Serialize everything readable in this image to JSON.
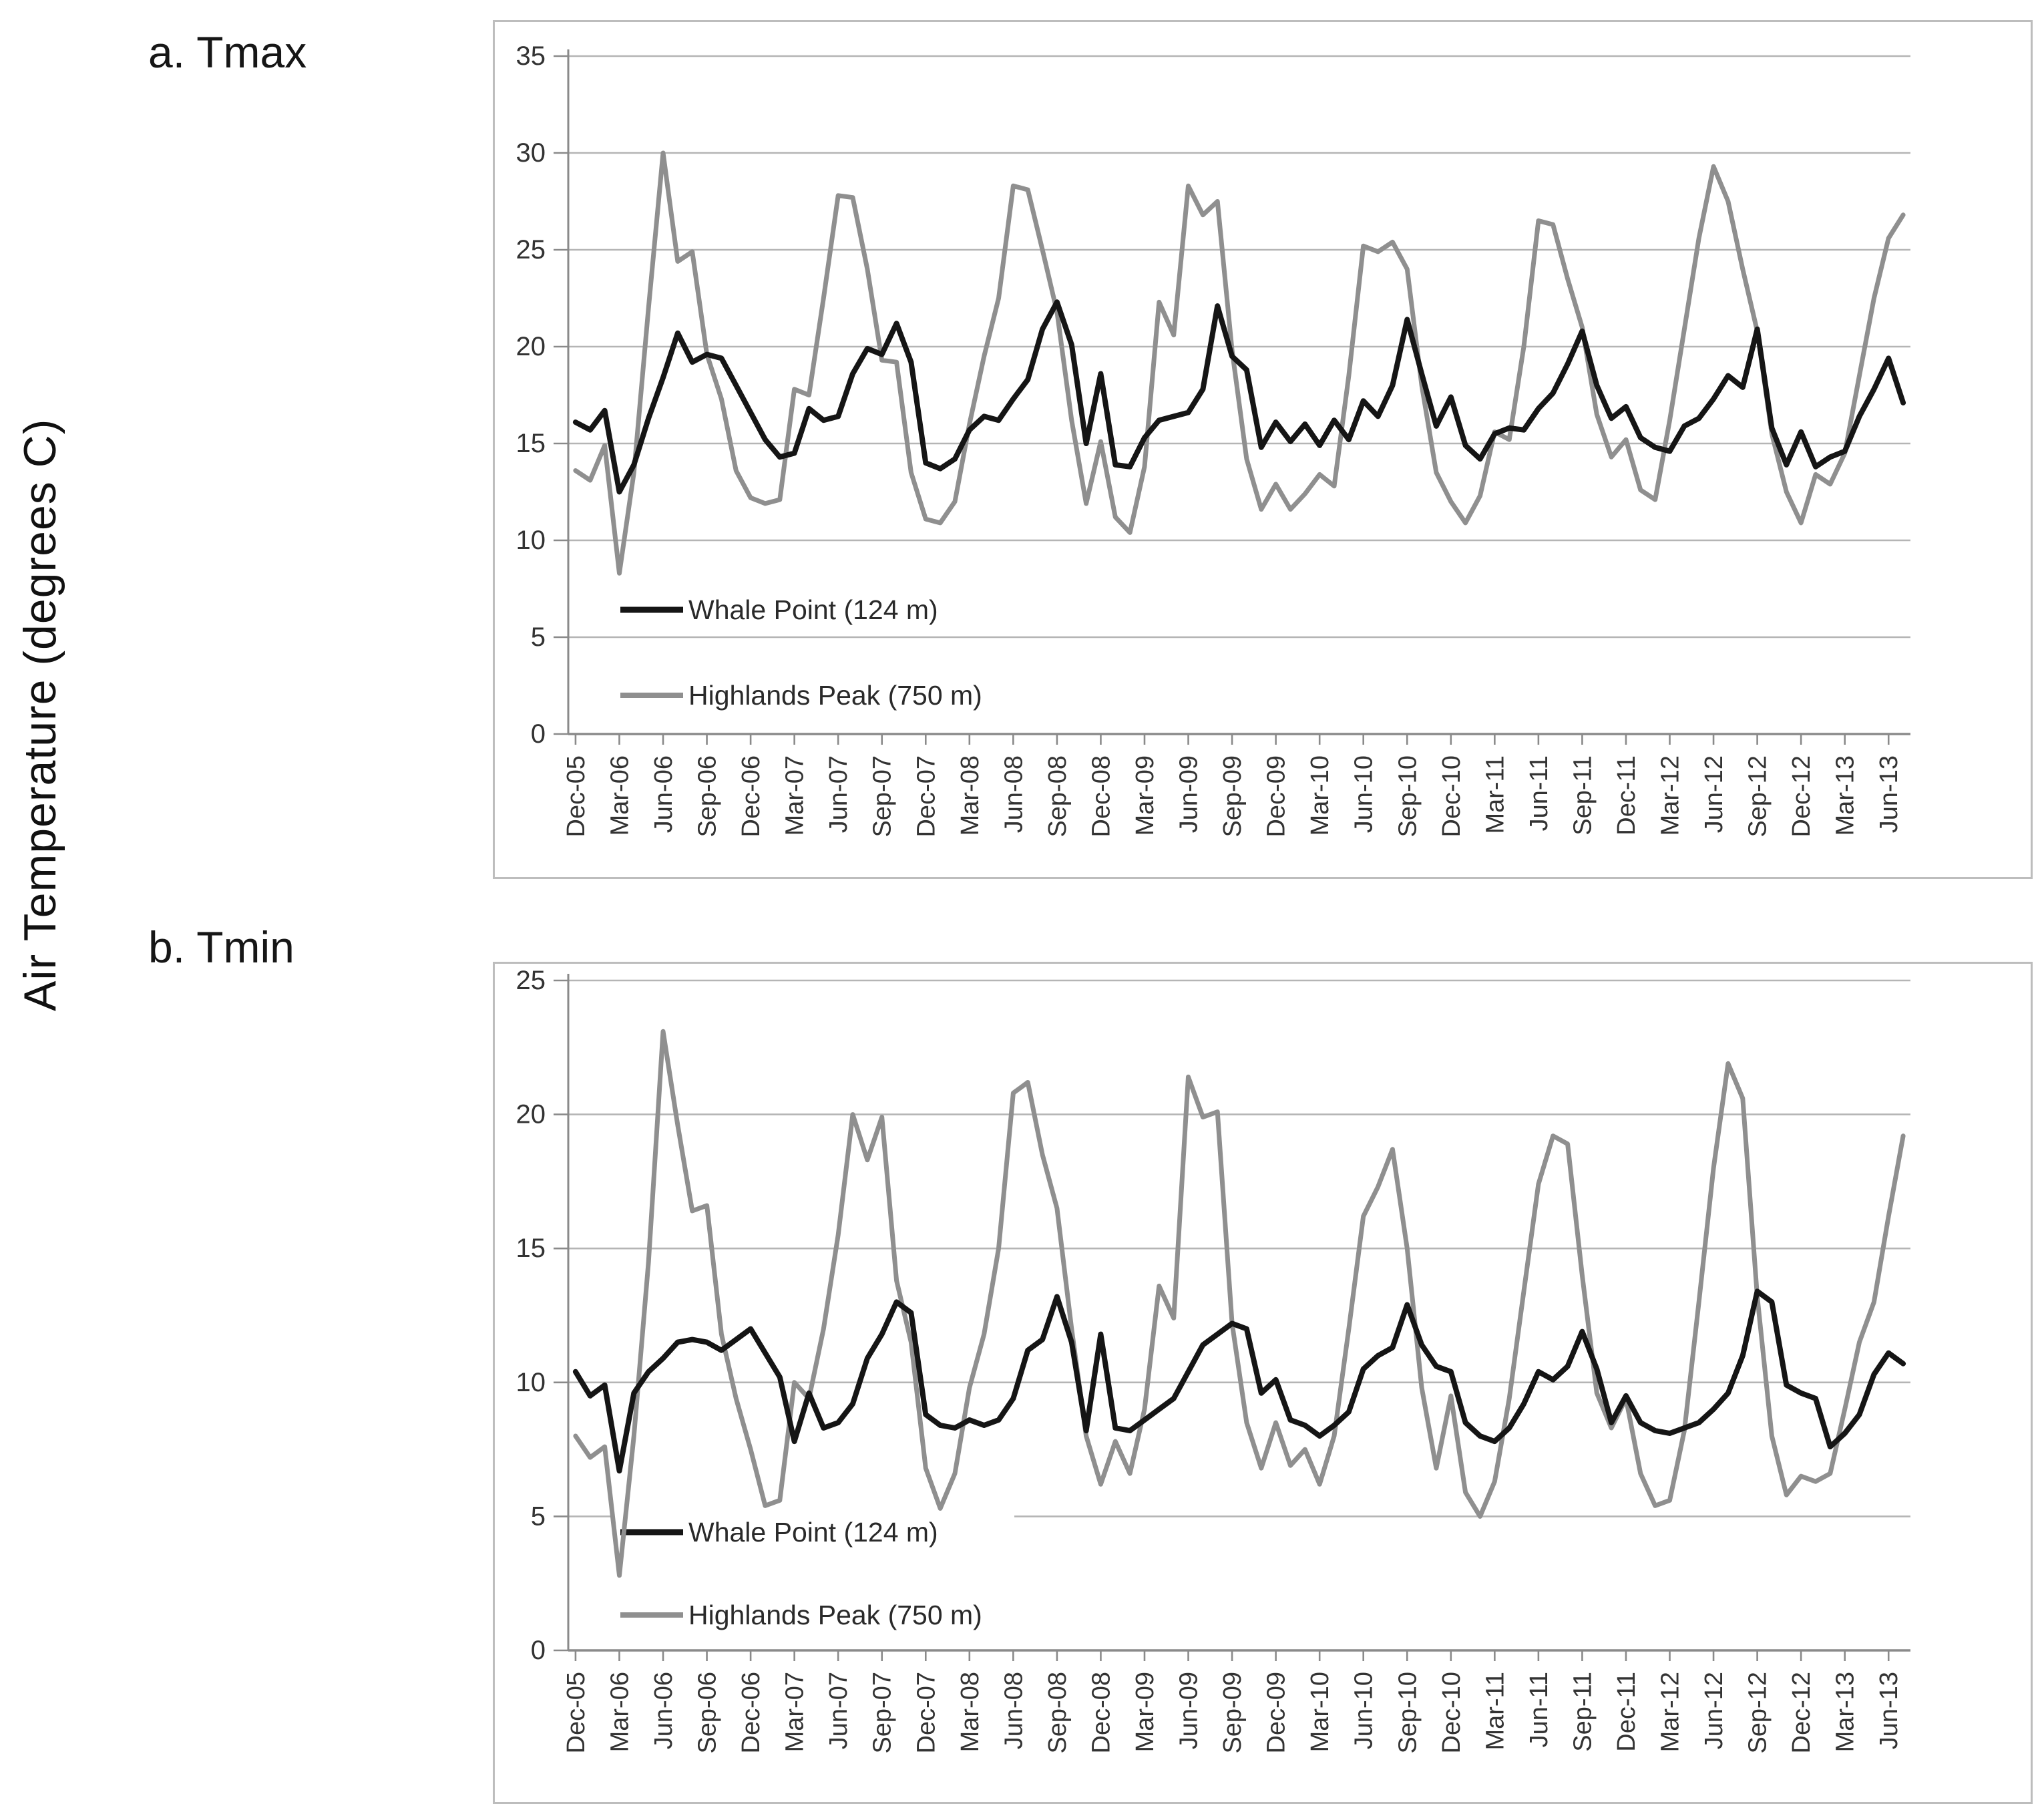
{
  "figure": {
    "y_axis_title": "Air Temperature (degrees C)"
  },
  "colors": {
    "whale_point": "#151515",
    "highlands_peak": "#8f8f8f",
    "gridline": "#b5b5b5",
    "axis": "#8a8a8a",
    "box_border": "#bdbdbd",
    "text": "#1f1f1f",
    "tick_text": "#333333"
  },
  "chart_data": [
    {
      "type": "line",
      "panel_label": "a. Tmax",
      "x_start": "Dec-05",
      "x_interval_months": 1,
      "xlabel": "",
      "ylabel": "",
      "ylim": [
        0,
        35
      ],
      "yticks": [
        0,
        5,
        10,
        15,
        20,
        25,
        30,
        35
      ],
      "grid": true,
      "legend_position": "inside-lower-left",
      "tick_labels": [
        "Dec-05",
        "Mar-06",
        "Jun-06",
        "Sep-06",
        "Dec-06",
        "Mar-07",
        "Jun-07",
        "Sep-07",
        "Dec-07",
        "Mar-08",
        "Jun-08",
        "Sep-08",
        "Dec-08",
        "Mar-09",
        "Jun-09",
        "Sep-09",
        "Dec-09",
        "Mar-10",
        "Jun-10",
        "Sep-10",
        "Dec-10",
        "Mar-11",
        "Jun-11",
        "Sep-11",
        "Dec-11",
        "Mar-12",
        "Jun-12",
        "Sep-12",
        "Dec-12",
        "Mar-13",
        "Jun-13"
      ],
      "series": [
        {
          "name": "Whale Point (124 m)",
          "color_key": "whale_point",
          "stroke_width": 8,
          "values": [
            16.1,
            15.7,
            16.7,
            12.5,
            13.9,
            16.3,
            18.4,
            20.7,
            19.2,
            19.6,
            19.4,
            18.0,
            16.6,
            15.2,
            14.3,
            14.5,
            16.8,
            16.2,
            16.4,
            18.6,
            19.9,
            19.6,
            21.2,
            19.2,
            14.0,
            13.7,
            14.2,
            15.7,
            16.4,
            16.2,
            17.3,
            18.3,
            20.9,
            22.3,
            20.1,
            15.0,
            18.6,
            13.9,
            13.8,
            15.3,
            16.2,
            16.4,
            16.6,
            17.8,
            22.1,
            19.5,
            18.8,
            14.8,
            16.1,
            15.1,
            16.0,
            14.9,
            16.2,
            15.2,
            17.2,
            16.4,
            18.0,
            21.4,
            18.6,
            15.9,
            17.4,
            14.9,
            14.2,
            15.5,
            15.8,
            15.7,
            16.8,
            17.6,
            19.1,
            20.8,
            18.0,
            16.3,
            16.9,
            15.3,
            14.8,
            14.6,
            15.9,
            16.3,
            17.3,
            18.5,
            17.9,
            20.9,
            15.8,
            13.9,
            15.6,
            13.8,
            14.3,
            14.6,
            16.4,
            17.8,
            19.4,
            17.1
          ]
        },
        {
          "name": "Highlands Peak (750 m)",
          "color_key": "highlands_peak",
          "stroke_width": 7,
          "values": [
            13.6,
            13.1,
            14.9,
            8.3,
            13.5,
            22.0,
            30.0,
            24.4,
            24.9,
            19.6,
            17.3,
            13.6,
            12.2,
            11.9,
            12.1,
            17.8,
            17.5,
            22.5,
            27.8,
            27.7,
            24.0,
            19.3,
            19.2,
            13.5,
            11.1,
            10.9,
            12.0,
            16.0,
            19.5,
            22.5,
            28.3,
            28.1,
            25.0,
            21.8,
            16.2,
            11.9,
            15.1,
            11.2,
            10.4,
            13.8,
            22.3,
            20.6,
            28.3,
            26.8,
            27.5,
            19.8,
            14.2,
            11.6,
            12.9,
            11.6,
            12.4,
            13.4,
            12.8,
            18.5,
            25.2,
            24.9,
            25.4,
            24.0,
            18.0,
            13.5,
            12.0,
            10.9,
            12.3,
            15.6,
            15.2,
            20.0,
            26.5,
            26.3,
            23.5,
            21.0,
            16.5,
            14.3,
            15.2,
            12.6,
            12.1,
            16.2,
            20.9,
            25.6,
            29.3,
            27.5,
            24.0,
            20.8,
            15.5,
            12.5,
            10.9,
            13.4,
            12.9,
            14.5,
            18.5,
            22.5,
            25.6,
            26.8
          ]
        }
      ]
    },
    {
      "type": "line",
      "panel_label": "b. Tmin",
      "x_start": "Dec-05",
      "x_interval_months": 1,
      "xlabel": "",
      "ylabel": "",
      "ylim": [
        0,
        25
      ],
      "yticks": [
        0,
        5,
        10,
        15,
        20,
        25
      ],
      "grid": true,
      "legend_position": "inside-lower-left",
      "tick_labels": [
        "Dec-05",
        "Mar-06",
        "Jun-06",
        "Sep-06",
        "Dec-06",
        "Mar-07",
        "Jun-07",
        "Sep-07",
        "Dec-07",
        "Mar-08",
        "Jun-08",
        "Sep-08",
        "Dec-08",
        "Mar-09",
        "Jun-09",
        "Sep-09",
        "Dec-09",
        "Mar-10",
        "Jun-10",
        "Sep-10",
        "Dec-10",
        "Mar-11",
        "Jun-11",
        "Sep-11",
        "Dec-11",
        "Mar-12",
        "Jun-12",
        "Sep-12",
        "Dec-12",
        "Mar-13",
        "Jun-13"
      ],
      "series": [
        {
          "name": "Whale Point (124 m)",
          "color_key": "whale_point",
          "stroke_width": 8,
          "values": [
            10.4,
            9.5,
            9.9,
            6.7,
            9.6,
            10.4,
            10.9,
            11.5,
            11.6,
            11.5,
            11.2,
            11.6,
            12.0,
            11.1,
            10.2,
            7.8,
            9.6,
            8.3,
            8.5,
            9.2,
            10.9,
            11.8,
            13.0,
            12.6,
            8.8,
            8.4,
            8.3,
            8.6,
            8.4,
            8.6,
            9.4,
            11.2,
            11.6,
            13.2,
            11.5,
            8.2,
            11.8,
            8.3,
            8.2,
            8.6,
            9.0,
            9.4,
            10.4,
            11.4,
            11.8,
            12.2,
            12.0,
            9.6,
            10.1,
            8.6,
            8.4,
            8.0,
            8.4,
            8.9,
            10.5,
            11.0,
            11.3,
            12.9,
            11.4,
            10.6,
            10.4,
            8.5,
            8.0,
            7.8,
            8.3,
            9.2,
            10.4,
            10.1,
            10.6,
            11.9,
            10.5,
            8.5,
            9.5,
            8.5,
            8.2,
            8.1,
            8.3,
            8.5,
            9.0,
            9.6,
            11.0,
            13.4,
            13.0,
            9.9,
            9.6,
            9.4,
            7.6,
            8.1,
            8.8,
            10.3,
            11.1,
            10.7
          ]
        },
        {
          "name": "Highlands Peak (750 m)",
          "color_key": "highlands_peak",
          "stroke_width": 7,
          "values": [
            8.0,
            7.2,
            7.6,
            2.8,
            8.0,
            14.5,
            23.1,
            19.6,
            16.4,
            16.6,
            11.8,
            9.4,
            7.5,
            5.4,
            5.6,
            10.0,
            9.4,
            12.0,
            15.5,
            20.0,
            18.3,
            19.9,
            13.8,
            11.5,
            6.8,
            5.3,
            6.6,
            9.8,
            11.8,
            15.0,
            20.8,
            21.2,
            18.5,
            16.5,
            12.0,
            8.0,
            6.2,
            7.8,
            6.6,
            9.0,
            13.6,
            12.4,
            21.4,
            19.9,
            20.1,
            12.2,
            8.5,
            6.8,
            8.5,
            6.9,
            7.5,
            6.2,
            8.0,
            12.0,
            16.2,
            17.3,
            18.7,
            15.0,
            9.8,
            6.8,
            9.5,
            5.9,
            5.0,
            6.3,
            9.4,
            13.4,
            17.4,
            19.2,
            18.9,
            14.0,
            9.6,
            8.3,
            9.4,
            6.6,
            5.4,
            5.6,
            8.2,
            13.0,
            18.0,
            21.9,
            20.6,
            13.2,
            8.0,
            5.8,
            6.5,
            6.3,
            6.6,
            9.0,
            11.5,
            13.0,
            16.2,
            19.2
          ]
        }
      ]
    }
  ]
}
